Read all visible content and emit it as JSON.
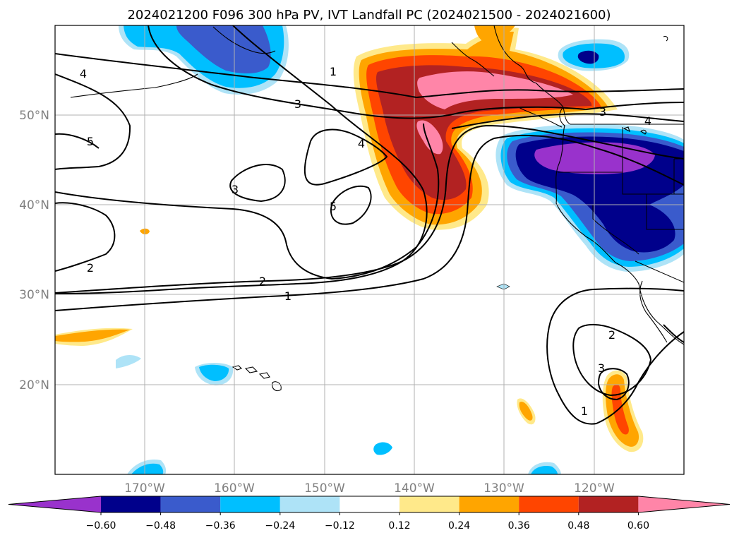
{
  "title": "2024021200 F096 300 hPa PV, IVT Landfall PC (2024021500 - 2024021600)",
  "lat_labels": [
    "50°N",
    "40°N",
    "30°N",
    "20°N"
  ],
  "lon_labels": [
    "170°W",
    "160°W",
    "150°W",
    "140°W",
    "130°W",
    "120°W"
  ],
  "contour_labels": {
    "c1_a": "1",
    "c1_b": "1",
    "c1_c": "1",
    "c2_a": "2",
    "c2_b": "2",
    "c2_c": "2",
    "c3_a": "3",
    "c3_b": "3",
    "c3_c": "3",
    "c3_d": "3",
    "c4_a": "4",
    "c4_b": "4",
    "c4_c": "4",
    "c5_a": "5",
    "c5_b": "5"
  },
  "colorbar": {
    "tick_labels": [
      "−0.60",
      "−0.48",
      "−0.36",
      "−0.24",
      "−0.12",
      "0.12",
      "0.24",
      "0.36",
      "0.48",
      "0.60"
    ],
    "colors": [
      "#9932cc",
      "#00008b",
      "#3a5bcc",
      "#00bfff",
      "#aee3f7",
      "#ffffff",
      "#ffe98a",
      "#ffa500",
      "#ff4500",
      "#b22222",
      "#ff85a8"
    ]
  },
  "fill_colors": {
    "purple": "#9932cc",
    "navy": "#00008b",
    "royal": "#3a5bcc",
    "sky": "#00bfff",
    "light_blue": "#aee3f7",
    "light_yellow": "#ffe98a",
    "orange": "#ffa500",
    "red_orange": "#ff4500",
    "firebrick": "#b22222",
    "pink": "#ff85a8"
  }
}
